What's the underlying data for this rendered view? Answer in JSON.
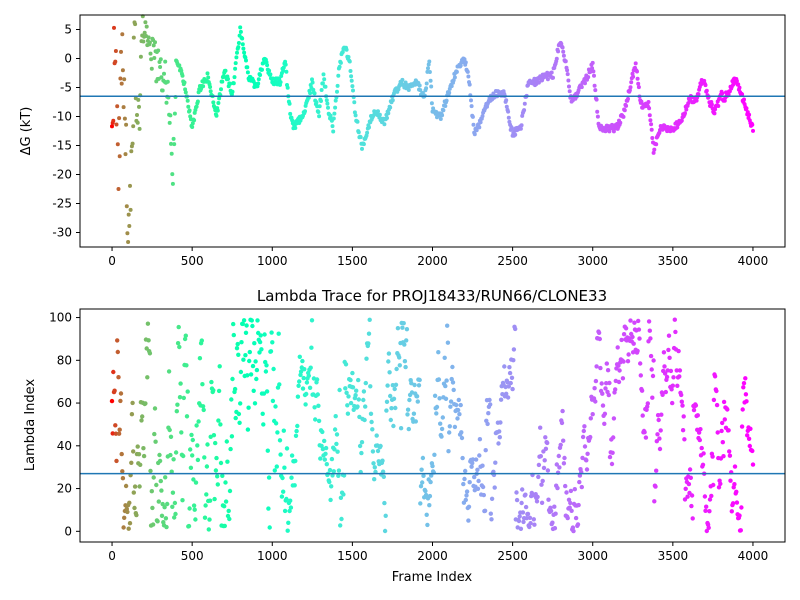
{
  "chart_data": [
    {
      "type": "scatter",
      "title": "",
      "xlabel": "",
      "ylabel": "ΔG (kT)",
      "xlim": [
        -200,
        4200
      ],
      "ylim": [
        -32.5,
        7.5
      ],
      "xticks": [
        0,
        500,
        1000,
        1500,
        2000,
        2500,
        3000,
        3500,
        4000
      ],
      "yticks": [
        -30,
        -25,
        -20,
        -15,
        -10,
        -5,
        0,
        5
      ],
      "hline": -6.5,
      "hline_color": "#1f77b4",
      "colormap": "rainbow",
      "grid": false,
      "series_anchors": {
        "x": [
          0,
          20,
          40,
          60,
          80,
          100,
          120,
          140,
          160,
          180,
          200,
          250,
          300,
          350,
          380,
          400,
          450,
          500,
          550,
          600,
          650,
          700,
          750,
          800,
          850,
          900,
          950,
          1000,
          1050,
          1080,
          1100,
          1130,
          1160,
          1200,
          1250,
          1290,
          1320,
          1350,
          1380,
          1420,
          1450,
          1480,
          1520,
          1560,
          1580,
          1620,
          1650,
          1700,
          1750,
          1800,
          1850,
          1900,
          1950,
          1980,
          2000,
          2050,
          2100,
          2150,
          2200,
          2230,
          2260,
          2300,
          2350,
          2400,
          2450,
          2480,
          2500,
          2550,
          2600,
          2650,
          2700,
          2750,
          2780,
          2800,
          2840,
          2860,
          2880,
          2900,
          2950,
          3000,
          3040,
          3080,
          3150,
          3200,
          3240,
          3270,
          3300,
          3350,
          3380,
          3420,
          3450,
          3500,
          3550,
          3600,
          3650,
          3680,
          3700,
          3720,
          3760,
          3780,
          3800,
          3820,
          3880,
          3900,
          3950,
          4000
        ],
        "y": [
          -10,
          4,
          -20,
          2,
          -8,
          -27,
          -18,
          4,
          -10,
          -3,
          6,
          1,
          -2,
          -5,
          -19,
          0,
          -4,
          -12,
          -5,
          -3,
          -10,
          -2,
          -6,
          5,
          -3,
          -5,
          0,
          -4,
          -4,
          0,
          -7,
          -12,
          -11,
          -9,
          -4,
          -10,
          -3,
          -9,
          -12,
          -1,
          2,
          0,
          -10,
          -15,
          -14,
          -10,
          -9,
          -11,
          -7,
          -4,
          -5,
          -4,
          -7,
          0,
          -9,
          -10,
          -6,
          -2,
          0,
          -4,
          -13,
          -11,
          -7,
          -6,
          -6,
          -11,
          -13,
          -12,
          -4,
          -4,
          -3,
          -3,
          1,
          3,
          -2,
          -7,
          -7,
          -6,
          -4,
          -1,
          -12,
          -12,
          -12,
          -9,
          -4,
          -1,
          -8,
          -8,
          -16,
          -12,
          -12,
          -12,
          -11,
          -7,
          -7,
          -4,
          -4,
          -7,
          -9,
          -8,
          -6,
          -7,
          -4,
          -4,
          -8,
          -12
        ]
      }
    },
    {
      "type": "scatter",
      "title": "Lambda Trace for PROJ18433/RUN66/CLONE33",
      "xlabel": "Frame Index",
      "ylabel": "Lambda Index",
      "xlim": [
        -200,
        4200
      ],
      "ylim": [
        -5,
        104
      ],
      "xticks": [
        0,
        500,
        1000,
        1500,
        2000,
        2500,
        3000,
        3500,
        4000
      ],
      "yticks": [
        0,
        20,
        40,
        60,
        80,
        100
      ],
      "hline": 27,
      "hline_color": "#1f77b4",
      "colormap": "rainbow",
      "grid": false,
      "value_range": [
        0,
        100
      ]
    }
  ]
}
